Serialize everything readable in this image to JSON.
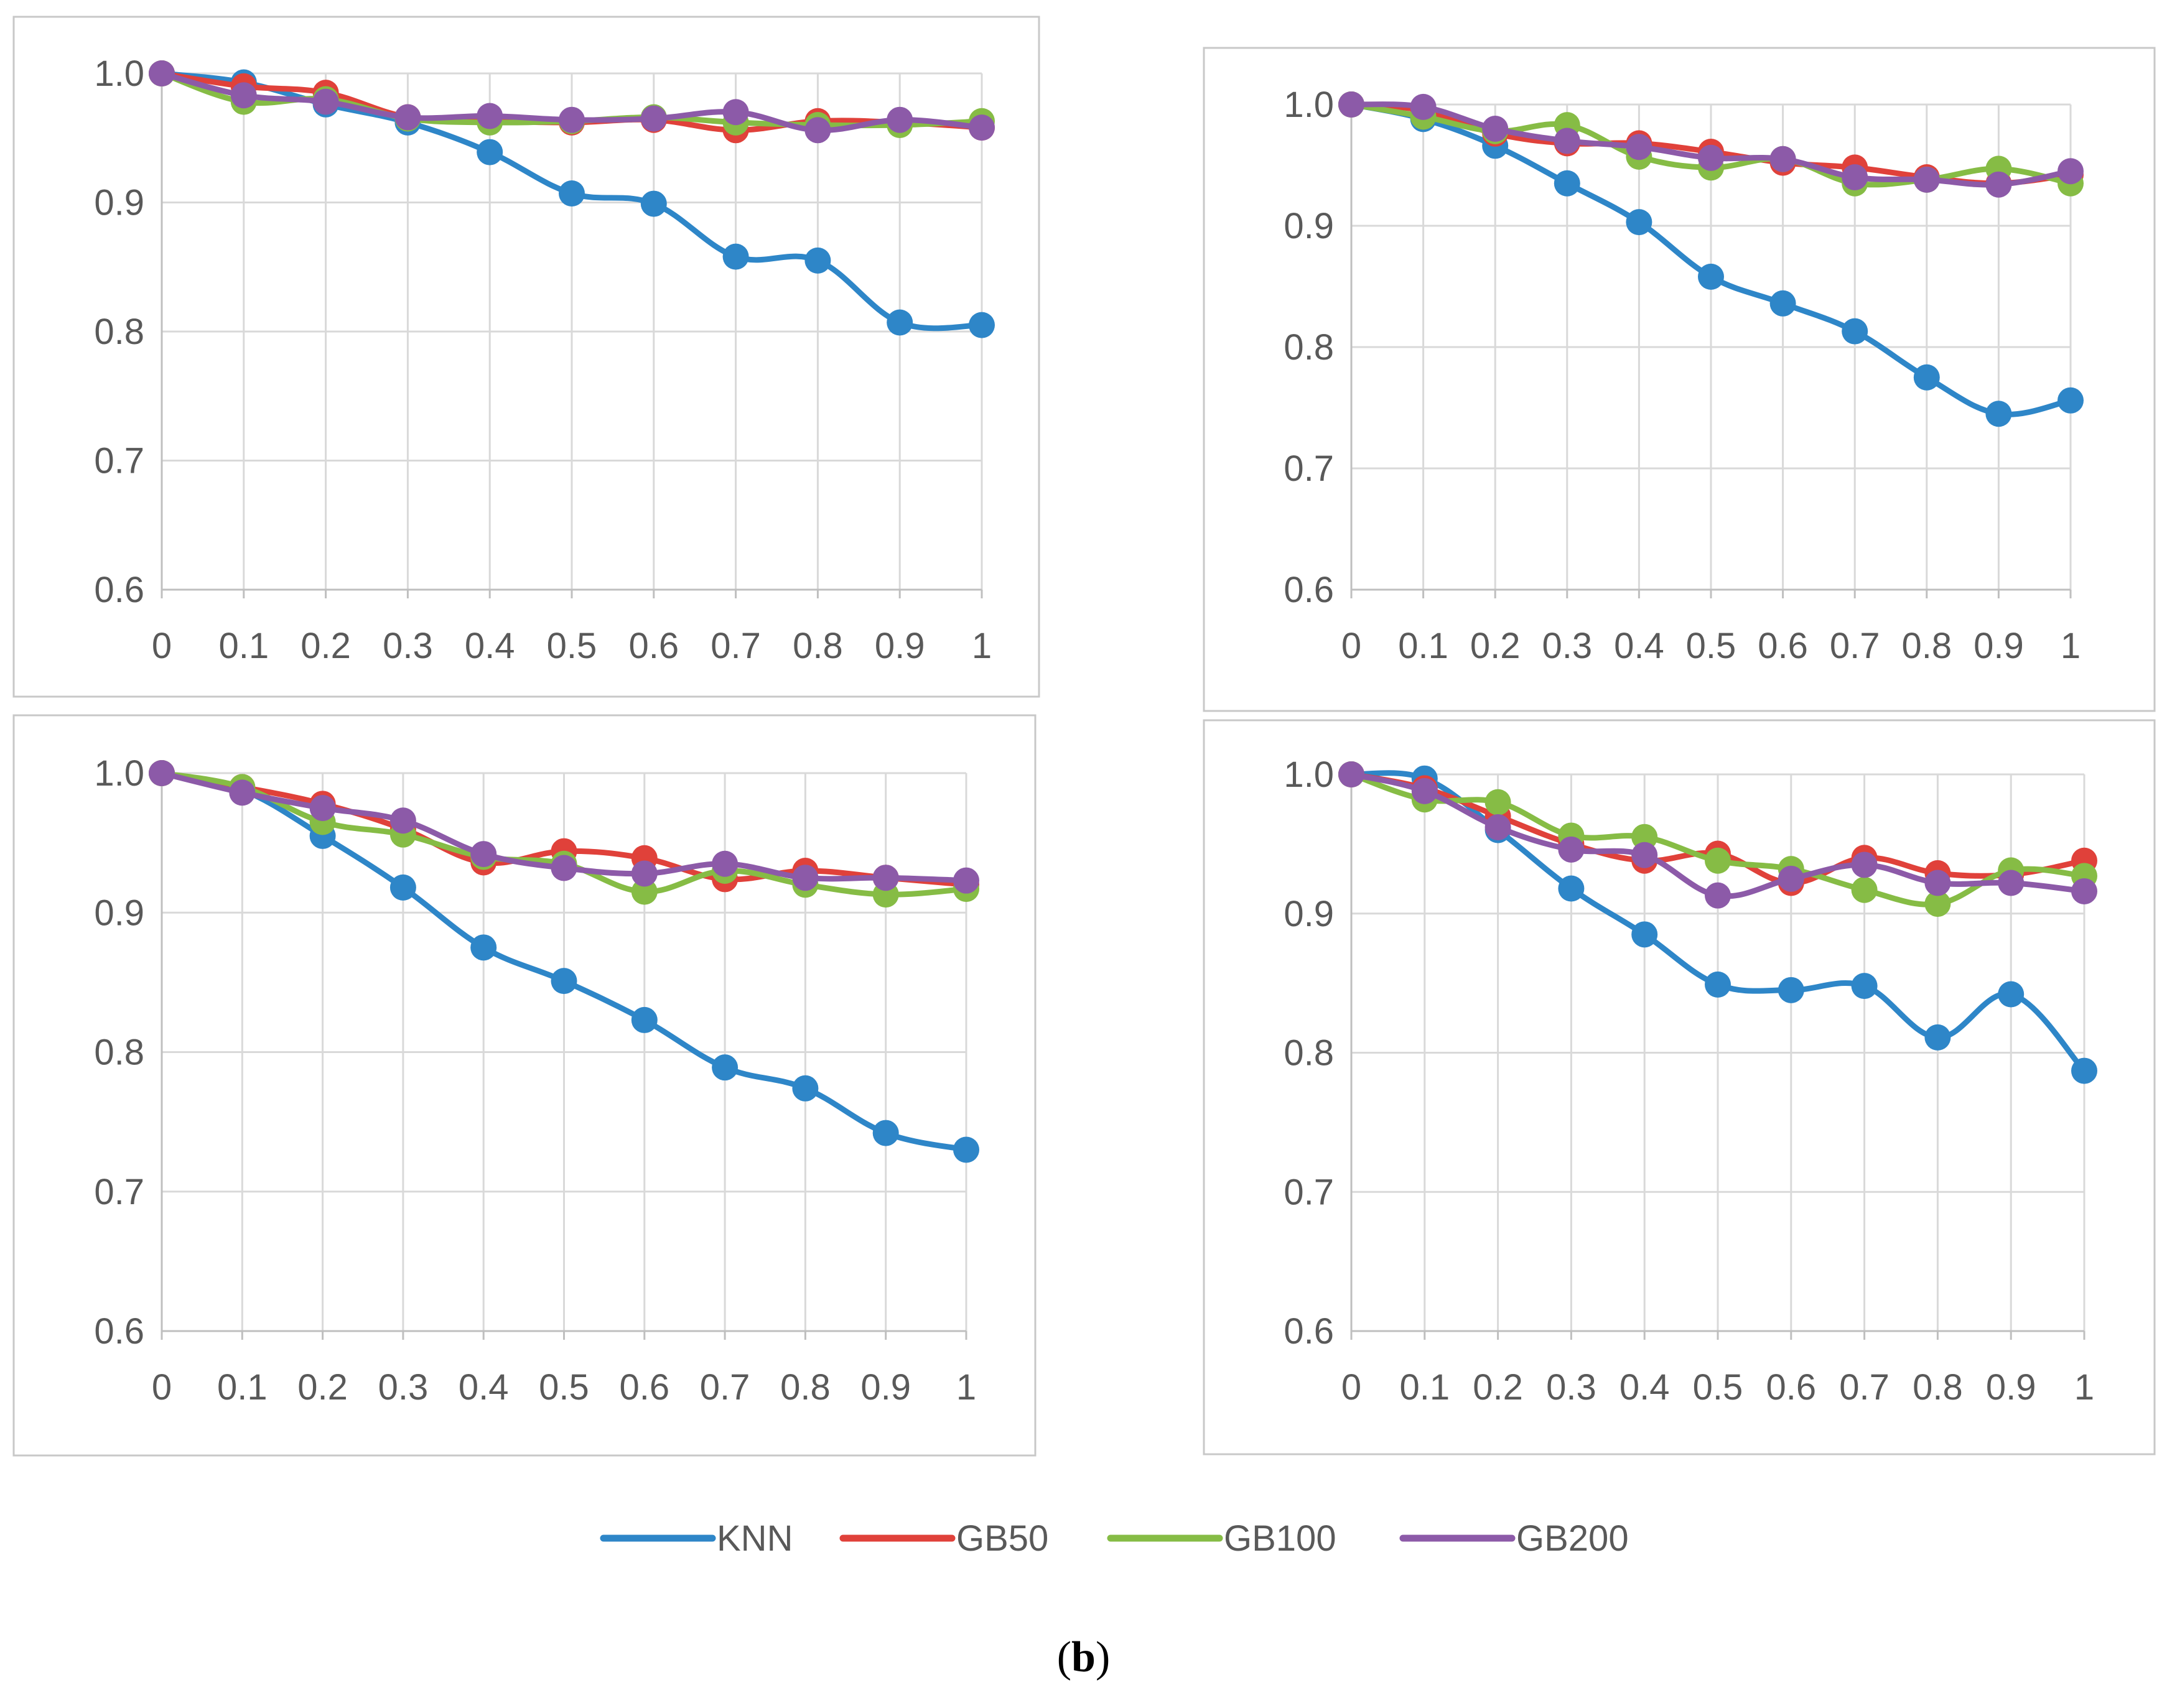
{
  "colors": {
    "KNN": "#2E86C8",
    "GB50": "#E0413A",
    "GB100": "#86BC45",
    "GB200": "#8C5AA8",
    "grid": "#D9D9D9",
    "axis": "#BFBFBF",
    "frame": "#C8C8C8",
    "text": "#595959"
  },
  "chart_data": [
    {
      "type": "line",
      "position": "top-left",
      "x": [
        "0",
        "0.1",
        "0.2",
        "0.3",
        "0.4",
        "0.5",
        "0.6",
        "0.7",
        "0.8",
        "0.9",
        "1"
      ],
      "ylim": [
        0.6,
        1.0
      ],
      "yticks": [
        "0.6",
        "0.7",
        "0.8",
        "0.9",
        "1.0"
      ],
      "series": [
        {
          "name": "KNN",
          "values": [
            1.0,
            0.993,
            0.976,
            0.962,
            0.939,
            0.907,
            0.899,
            0.858,
            0.855,
            0.807,
            0.805
          ]
        },
        {
          "name": "GB50",
          "values": [
            1.0,
            0.99,
            0.985,
            0.966,
            0.963,
            0.962,
            0.964,
            0.956,
            0.963,
            0.962,
            0.958
          ]
        },
        {
          "name": "GB100",
          "values": [
            1.0,
            0.978,
            0.98,
            0.965,
            0.962,
            0.963,
            0.966,
            0.962,
            0.96,
            0.96,
            0.963
          ]
        },
        {
          "name": "GB200",
          "values": [
            1.0,
            0.983,
            0.978,
            0.966,
            0.967,
            0.964,
            0.965,
            0.97,
            0.956,
            0.964,
            0.958
          ]
        }
      ]
    },
    {
      "type": "line",
      "position": "top-right",
      "x": [
        "0",
        "0.1",
        "0.2",
        "0.3",
        "0.4",
        "0.5",
        "0.6",
        "0.7",
        "0.8",
        "0.9",
        "1"
      ],
      "ylim": [
        0.6,
        1.0
      ],
      "yticks": [
        "0.6",
        "0.7",
        "0.8",
        "0.9",
        "1.0"
      ],
      "series": [
        {
          "name": "KNN",
          "values": [
            1.0,
            0.988,
            0.966,
            0.935,
            0.903,
            0.858,
            0.836,
            0.813,
            0.775,
            0.745,
            0.756
          ]
        },
        {
          "name": "GB50",
          "values": [
            1.0,
            0.995,
            0.976,
            0.968,
            0.968,
            0.961,
            0.952,
            0.948,
            0.94,
            0.935,
            0.942
          ]
        },
        {
          "name": "GB100",
          "values": [
            1.0,
            0.99,
            0.978,
            0.983,
            0.957,
            0.948,
            0.955,
            0.935,
            0.938,
            0.947,
            0.935
          ]
        },
        {
          "name": "GB200",
          "values": [
            1.0,
            0.998,
            0.98,
            0.97,
            0.965,
            0.956,
            0.955,
            0.94,
            0.938,
            0.934,
            0.945
          ]
        }
      ]
    },
    {
      "type": "line",
      "position": "bottom-left",
      "x": [
        "0",
        "0.1",
        "0.2",
        "0.3",
        "0.4",
        "0.5",
        "0.6",
        "0.7",
        "0.8",
        "0.9",
        "1"
      ],
      "ylim": [
        0.6,
        1.0
      ],
      "yticks": [
        "0.6",
        "0.7",
        "0.8",
        "0.9",
        "1.0"
      ],
      "series": [
        {
          "name": "KNN",
          "values": [
            1.0,
            0.988,
            0.955,
            0.918,
            0.875,
            0.851,
            0.823,
            0.789,
            0.774,
            0.742,
            0.73
          ]
        },
        {
          "name": "GB50",
          "values": [
            1.0,
            0.99,
            0.978,
            0.96,
            0.936,
            0.944,
            0.939,
            0.924,
            0.93,
            0.925,
            0.92
          ]
        },
        {
          "name": "GB100",
          "values": [
            1.0,
            0.99,
            0.965,
            0.956,
            0.94,
            0.935,
            0.915,
            0.93,
            0.92,
            0.913,
            0.917
          ]
        },
        {
          "name": "GB200",
          "values": [
            1.0,
            0.986,
            0.975,
            0.966,
            0.942,
            0.932,
            0.928,
            0.935,
            0.925,
            0.925,
            0.923
          ]
        }
      ]
    },
    {
      "type": "line",
      "position": "bottom-right",
      "x": [
        "0",
        "0.1",
        "0.2",
        "0.3",
        "0.4",
        "0.5",
        "0.6",
        "0.7",
        "0.8",
        "0.9",
        "1"
      ],
      "ylim": [
        0.6,
        1.0
      ],
      "yticks": [
        "0.6",
        "0.7",
        "0.8",
        "0.9",
        "1.0"
      ],
      "series": [
        {
          "name": "KNN",
          "values": [
            1.0,
            0.997,
            0.96,
            0.918,
            0.885,
            0.849,
            0.845,
            0.848,
            0.811,
            0.842,
            0.787
          ]
        },
        {
          "name": "GB50",
          "values": [
            1.0,
            0.99,
            0.97,
            0.95,
            0.938,
            0.943,
            0.922,
            0.94,
            0.929,
            0.928,
            0.938
          ]
        },
        {
          "name": "GB100",
          "values": [
            1.0,
            0.982,
            0.98,
            0.956,
            0.955,
            0.938,
            0.932,
            0.917,
            0.907,
            0.931,
            0.927
          ]
        },
        {
          "name": "GB200",
          "values": [
            1.0,
            0.988,
            0.962,
            0.946,
            0.942,
            0.913,
            0.925,
            0.935,
            0.922,
            0.922,
            0.916
          ]
        }
      ]
    }
  ],
  "legend": {
    "position": "bottom-center",
    "entries": [
      "KNN",
      "GB50",
      "GB100",
      "GB200"
    ]
  },
  "caption": {
    "open": "(",
    "label": "b",
    "close": ")"
  }
}
